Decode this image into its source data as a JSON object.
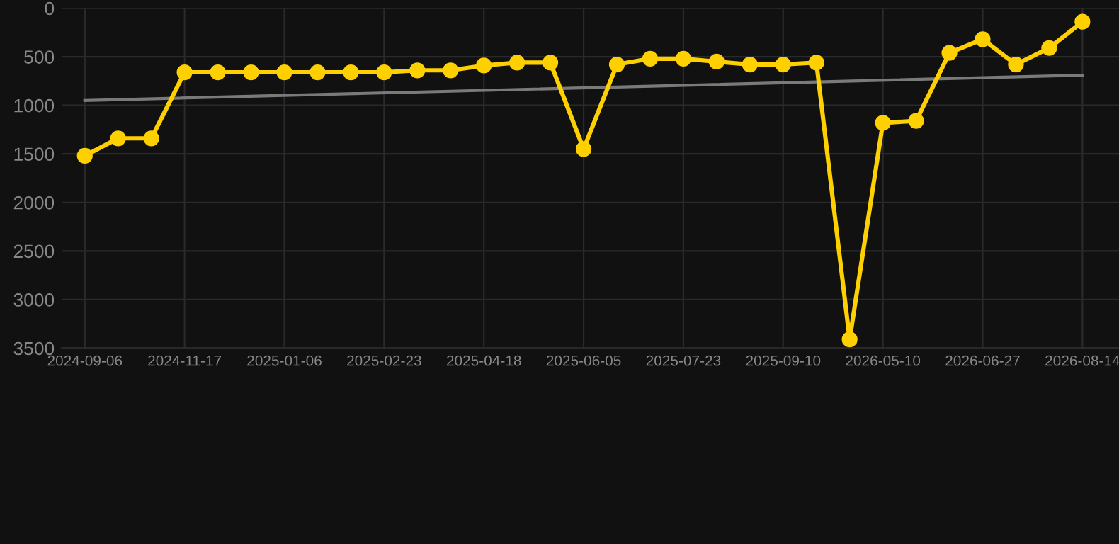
{
  "chart_data": {
    "type": "line",
    "categories": [
      "2024-09-06",
      null,
      null,
      "2024-11-17",
      null,
      null,
      "2025-01-06",
      null,
      null,
      "2025-02-23",
      null,
      null,
      "2025-04-18",
      null,
      null,
      "2025-06-05",
      null,
      null,
      "2025-07-23",
      null,
      null,
      "2025-09-10",
      null,
      null,
      "2026-05-10",
      null,
      null,
      "2026-06-27",
      null,
      null,
      "2026-08-14"
    ],
    "series": [
      {
        "color": "#ffd000",
        "marker": "circle",
        "values": [
          1520,
          1340,
          1340,
          660,
          660,
          660,
          660,
          660,
          660,
          660,
          640,
          640,
          590,
          560,
          560,
          1450,
          580,
          520,
          520,
          550,
          580,
          580,
          560,
          3410,
          1180,
          1160,
          460,
          320,
          580,
          410,
          140
        ]
      },
      {
        "color": "#7a7a7a",
        "marker": "none",
        "values": [
          950,
          null,
          null,
          null,
          null,
          null,
          null,
          null,
          null,
          null,
          null,
          null,
          null,
          null,
          null,
          null,
          null,
          null,
          null,
          null,
          null,
          null,
          null,
          null,
          null,
          null,
          null,
          null,
          null,
          null,
          690
        ]
      }
    ],
    "ylim": [
      3500,
      0
    ],
    "yticks": [
      0,
      500,
      1000,
      1500,
      2000,
      2500,
      3000,
      3500
    ],
    "grid": true
  }
}
